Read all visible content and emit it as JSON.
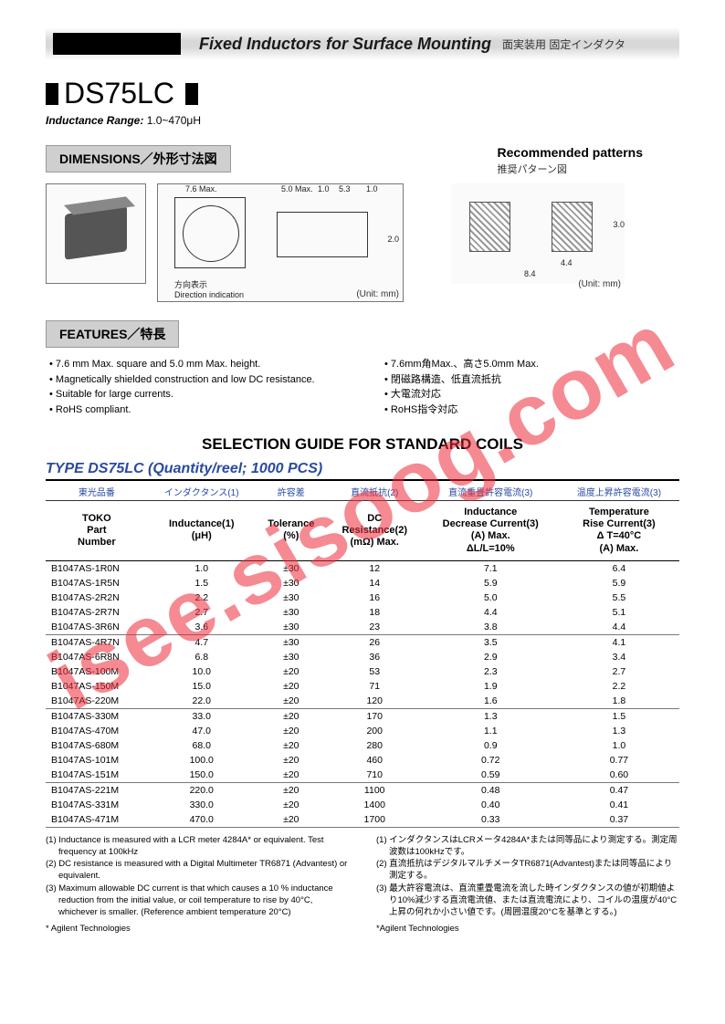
{
  "watermark": "isee.sisoog.com",
  "header": {
    "title": "Fixed Inductors for Surface Mounting",
    "jp": "面実装用 固定インダクタ"
  },
  "product": "DS75LC",
  "range": {
    "label": "Inductance Range:",
    "value": "1.0~470μH"
  },
  "sections": {
    "dimensions": "DIMENSIONS／外形寸法図",
    "features": "FEATURES／特長",
    "recommended": "Recommended patterns",
    "recommended_jp": "推奨パターン図"
  },
  "diagrams": {
    "unit": "(Unit: mm)",
    "dim1": "7.6 Max.",
    "dim2": "5.0 Max.",
    "dim3": "1.0",
    "dim4": "5.3",
    "dim5": "1.0",
    "dim6": "2.0",
    "direction_jp": "方向表示",
    "direction_en": "Direction indication",
    "pad_w": "4.4",
    "pad_total": "8.4",
    "pad_h": "3.0"
  },
  "features_en": [
    "7.6 mm Max. square and 5.0 mm Max. height.",
    "Magnetically shielded construction and low DC resistance.",
    "Suitable for large currents.",
    "RoHS compliant."
  ],
  "features_jp": [
    "7.6mm角Max.、高さ5.0mm Max.",
    "閉磁路構造、低直流抵抗",
    "大電流対応",
    "RoHS指令対応"
  ],
  "selection_title": "SELECTION GUIDE FOR STANDARD COILS",
  "type_title": "TYPE DS75LC (Quantity/reel; 1000 PCS)",
  "table": {
    "jp_headers": [
      "東光品番",
      "インダクタンス(1)",
      "許容差",
      "直流抵抗(2)",
      "直流重畳許容電流(3)",
      "温度上昇許容電流(3)"
    ],
    "en_headers": [
      "TOKO<br>Part<br>Number",
      "Inductance(1)<br>(μH)",
      "Tolerance<br>(%)",
      "DC<br>Resistance(2)<br>(mΩ) Max.",
      "Inductance<br>Decrease Current(3)<br>(A) Max.<br>ΔL/L=10%",
      "Temperature<br>Rise Current(3)<br>Δ T=40°C<br>(A) Max."
    ],
    "rows": [
      [
        "B1047AS-1R0N",
        "1.0",
        "±30",
        "12",
        "7.1",
        "6.4"
      ],
      [
        "B1047AS-1R5N",
        "1.5",
        "±30",
        "14",
        "5.9",
        "5.9"
      ],
      [
        "B1047AS-2R2N",
        "2.2",
        "±30",
        "16",
        "5.0",
        "5.5"
      ],
      [
        "B1047AS-2R7N",
        "2.7",
        "±30",
        "18",
        "4.4",
        "5.1"
      ],
      [
        "B1047AS-3R6N",
        "3.6",
        "±30",
        "23",
        "3.8",
        "4.4"
      ],
      [
        "B1047AS-4R7N",
        "4.7",
        "±30",
        "26",
        "3.5",
        "4.1"
      ],
      [
        "B1047AS-6R8N",
        "6.8",
        "±30",
        "36",
        "2.9",
        "3.4"
      ],
      [
        "B1047AS-100M",
        "10.0",
        "±20",
        "53",
        "2.3",
        "2.7"
      ],
      [
        "B1047AS-150M",
        "15.0",
        "±20",
        "71",
        "1.9",
        "2.2"
      ],
      [
        "B1047AS-220M",
        "22.0",
        "±20",
        "120",
        "1.6",
        "1.8"
      ],
      [
        "B1047AS-330M",
        "33.0",
        "±20",
        "170",
        "1.3",
        "1.5"
      ],
      [
        "B1047AS-470M",
        "47.0",
        "±20",
        "200",
        "1.1",
        "1.3"
      ],
      [
        "B1047AS-680M",
        "68.0",
        "±20",
        "280",
        "0.9",
        "1.0"
      ],
      [
        "B1047AS-101M",
        "100.0",
        "±20",
        "460",
        "0.72",
        "0.77"
      ],
      [
        "B1047AS-151M",
        "150.0",
        "±20",
        "710",
        "0.59",
        "0.60"
      ],
      [
        "B1047AS-221M",
        "220.0",
        "±20",
        "1100",
        "0.48",
        "0.47"
      ],
      [
        "B1047AS-331M",
        "330.0",
        "±20",
        "1400",
        "0.40",
        "0.41"
      ],
      [
        "B1047AS-471M",
        "470.0",
        "±20",
        "1700",
        "0.33",
        "0.37"
      ]
    ],
    "group_ends": [
      4,
      9,
      14,
      17
    ]
  },
  "notes_en": [
    "(1) Inductance is measured with a LCR meter 4284A* or equivalent. Test frequency at 100kHz",
    "(2) DC resistance is measured with a Digital Multimeter TR6871 (Advantest) or equivalent.",
    "(3) Maximum allowable DC current is that which causes a 10 % inductance reduction from the initial value, or coil temperature to rise by 40°C, whichever is smaller. (Reference ambient temperature 20°C)"
  ],
  "notes_jp": [
    "(1) インダクタンスはLCRメータ4284A*または同等品により測定する。測定周波数は100kHzです。",
    "(2) 直流抵抗はデジタルマルチメータTR6871(Advantest)または同等品により測定する。",
    "(3) 最大許容電流は、直流重畳電流を流した時インダクタンスの値が初期値より10%減少する直流電流値、または直流電流により、コイルの温度が40°C上昇の何れか小さい値です。(周囲温度20°Cを基準とする。)"
  ],
  "agilent": "* Agilent Technologies",
  "agilent_jp": "*Agilent Technologies"
}
